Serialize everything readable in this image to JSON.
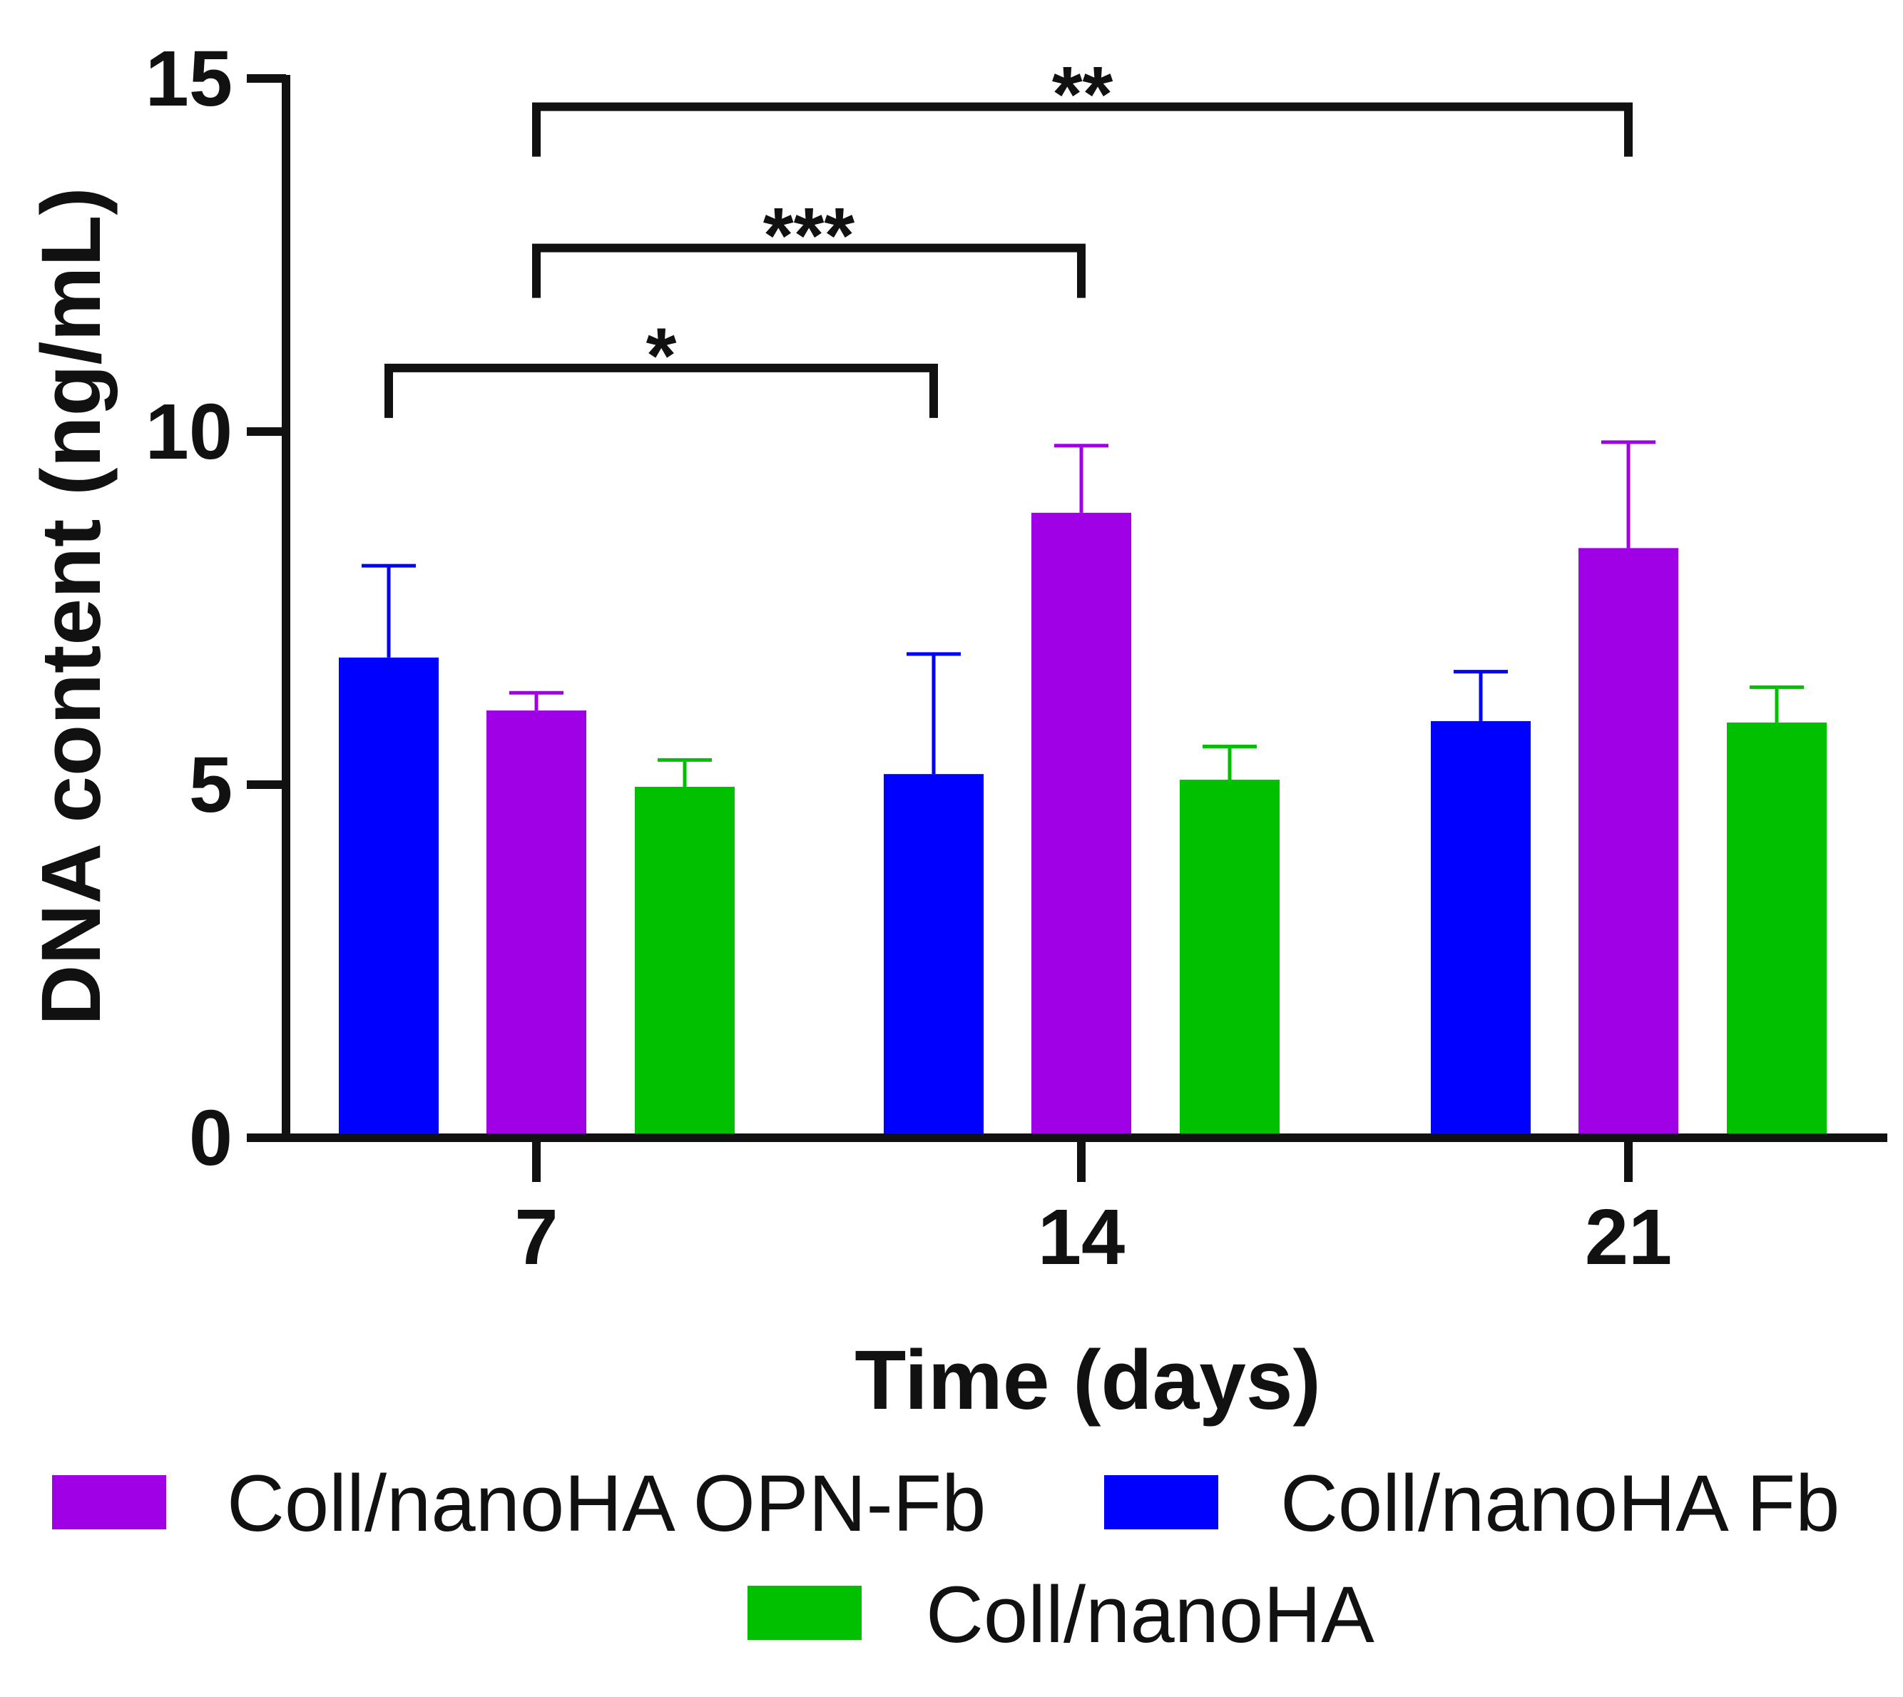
{
  "chart_data": {
    "type": "bar",
    "title": "",
    "xlabel": "Time (days)",
    "ylabel": "DNA content (ng/mL)",
    "ylim": [
      0,
      15
    ],
    "yticks": [
      0,
      5,
      10,
      15
    ],
    "categories": [
      "7",
      "14",
      "21"
    ],
    "series": [
      {
        "name": "Coll/nanoHA Fb",
        "color": "#0000ff",
        "values": [
          6.8,
          5.15,
          5.9
        ],
        "errors": [
          1.3,
          1.7,
          0.7
        ]
      },
      {
        "name": "Coll/nanoHA OPN-Fb",
        "color": "#a000e6",
        "values": [
          6.05,
          8.85,
          8.35
        ],
        "errors": [
          0.25,
          0.95,
          1.5
        ]
      },
      {
        "name": "Coll/nanoHA",
        "color": "#00c000",
        "values": [
          4.97,
          5.07,
          5.88
        ],
        "errors": [
          0.38,
          0.47,
          0.5
        ]
      }
    ],
    "significance": [
      {
        "label": "*",
        "from": {
          "category": 0,
          "series": 0
        },
        "to": {
          "category": 1,
          "series": 0
        },
        "y": 10.9,
        "label_y": 11.3
      },
      {
        "label": "***",
        "from": {
          "category": 0,
          "series": 1
        },
        "to": {
          "category": 1,
          "series": 1
        },
        "y": 12.6,
        "label_y": 13.0
      },
      {
        "label": "**",
        "from": {
          "category": 0,
          "series": 1
        },
        "to": {
          "category": 2,
          "series": 1
        },
        "y": 14.6,
        "label_y": 15.0
      }
    ],
    "legend": {
      "position": "bottom",
      "order": [
        "Coll/nanoHA OPN-Fb",
        "Coll/nanoHA Fb",
        "Coll/nanoHA"
      ]
    }
  }
}
